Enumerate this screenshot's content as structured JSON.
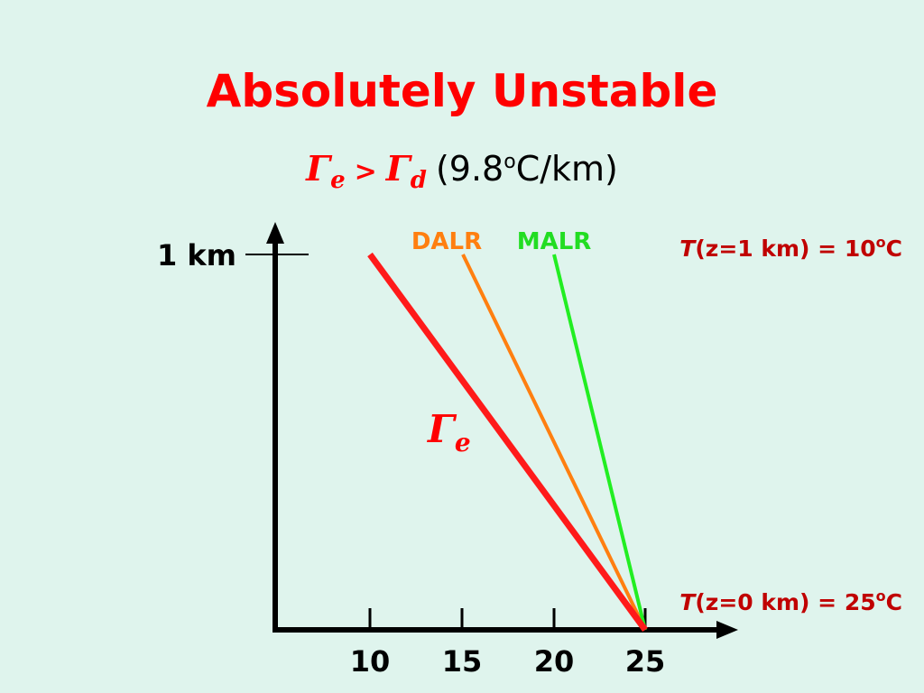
{
  "title": "Absolutely Unstable",
  "subtitle": {
    "gamma_e": "Γ",
    "gamma_e_sub": "e",
    "operator": ">",
    "gamma_d": "Γ",
    "gamma_d_sub": "d",
    "value_open": "(9.8",
    "value_sup": "o",
    "value_close": "C/km)"
  },
  "y_axis": {
    "label": "1 km"
  },
  "x_axis": {
    "ticks": [
      "10",
      "15",
      "20",
      "25"
    ]
  },
  "lines": {
    "dalr": "DALR",
    "malr": "MALR",
    "gamma_e": "Γ",
    "gamma_e_sub": "e"
  },
  "annotations": {
    "top": {
      "t": "T",
      "text": "(z=1 km) = 10",
      "sup": "o",
      "unit": "C"
    },
    "bottom": {
      "t": "T",
      "text": "(z=0 km) = 25",
      "sup": "o",
      "unit": "C"
    }
  }
}
